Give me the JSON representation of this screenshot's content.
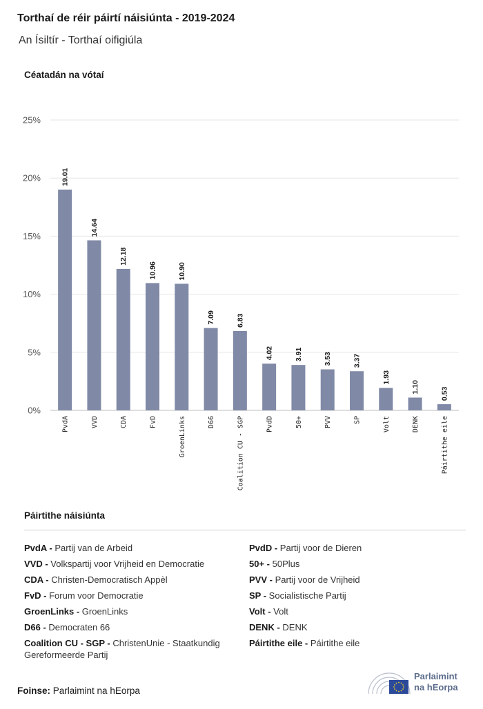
{
  "title": "Torthaí de réir páirtí náisiúnta - 2019-2024",
  "subtitle": "An Ísiltír - Torthaí oifigiúla",
  "chart_data": {
    "type": "bar",
    "ylabel": "Céatadán na vótaí",
    "xlabel": "",
    "ylim": [
      0,
      25
    ],
    "yticks": [
      0,
      5,
      10,
      15,
      20,
      25
    ],
    "ytick_labels": [
      "0%",
      "5%",
      "10%",
      "15%",
      "20%",
      "25%"
    ],
    "grid": true,
    "bar_color": "#8089a6",
    "categories": [
      "PvdA",
      "VVD",
      "CDA",
      "FvD",
      "GroenLinks",
      "D66",
      "Coalition CU - SGP",
      "PvdD",
      "50+",
      "PVV",
      "SP",
      "Volt",
      "DENK",
      "Páirtithe eile"
    ],
    "values": [
      19.01,
      14.64,
      12.18,
      10.96,
      10.9,
      7.09,
      6.83,
      4.02,
      3.91,
      3.53,
      3.37,
      1.93,
      1.1,
      0.53
    ],
    "value_labels": [
      "19.01",
      "14.64",
      "12.18",
      "10.96",
      "10.90",
      "7.09",
      "6.83",
      "4.02",
      "3.91",
      "3.53",
      "3.37",
      "1.93",
      "1.10",
      "0.53"
    ]
  },
  "legend": {
    "title": "Páirtithe náisiúnta",
    "left": [
      {
        "abbr": "PvdA -",
        "name": "Partij van de Arbeid"
      },
      {
        "abbr": "VVD -",
        "name": "Volkspartij voor Vrijheid en Democratie"
      },
      {
        "abbr": "CDA -",
        "name": "Christen-Democratisch Appèl"
      },
      {
        "abbr": "FvD -",
        "name": "Forum voor Democratie"
      },
      {
        "abbr": "GroenLinks -",
        "name": "GroenLinks"
      },
      {
        "abbr": "D66 -",
        "name": "Democraten 66"
      },
      {
        "abbr": "Coalition CU - SGP -",
        "name": "ChristenUnie - Staatkundig Gereformeerde Partij"
      }
    ],
    "right": [
      {
        "abbr": "PvdD -",
        "name": "Partij voor de Dieren"
      },
      {
        "abbr": "50+ -",
        "name": "50Plus"
      },
      {
        "abbr": "PVV -",
        "name": "Partij voor de Vrijheid"
      },
      {
        "abbr": "SP -",
        "name": "Socialistische Partij"
      },
      {
        "abbr": "Volt -",
        "name": "Volt"
      },
      {
        "abbr": "DENK -",
        "name": "DENK"
      },
      {
        "abbr": "Páirtithe eile -",
        "name": "Páirtithe eile"
      }
    ]
  },
  "source": {
    "label": "Foinse:",
    "text": "Parlaimint na hEorpa"
  },
  "logo": {
    "line1": "Parlaimint",
    "line2": "na hEorpa",
    "primary_color": "#5b6b8c",
    "flag_color": "#2c4a9a",
    "star_color": "#f5d020"
  }
}
